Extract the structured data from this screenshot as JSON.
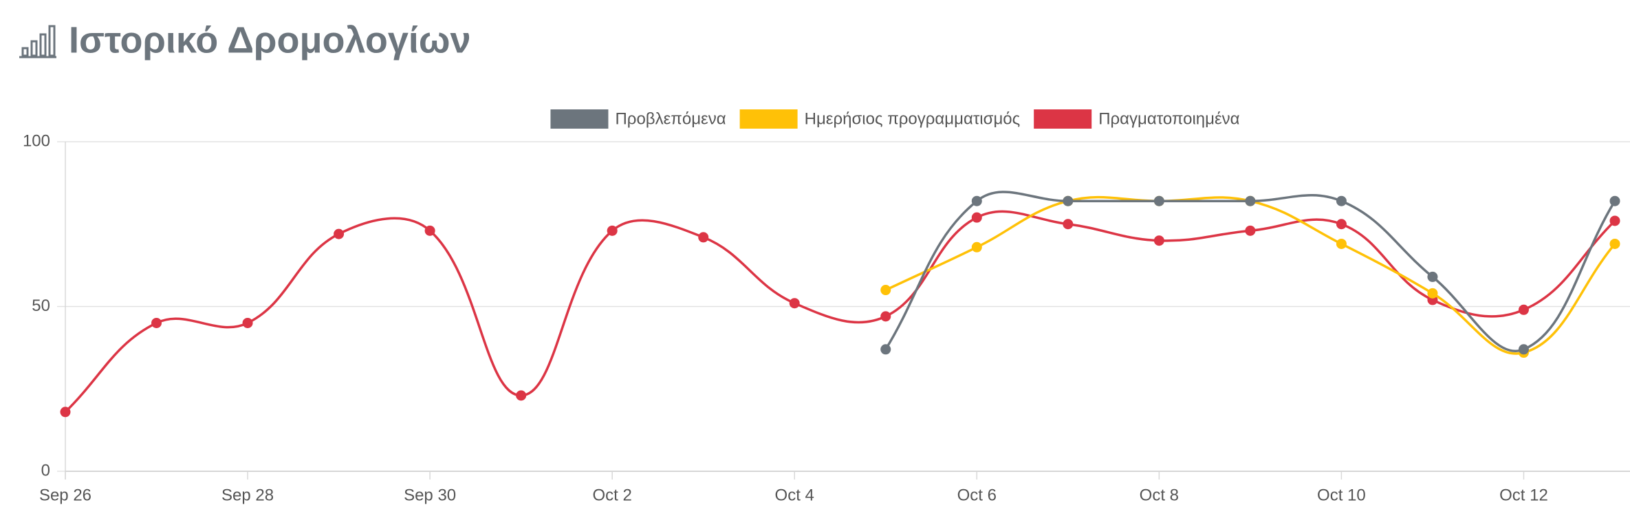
{
  "chart_data": {
    "type": "line",
    "title": "Ιστορικό Δρομολογίων",
    "categories": [
      "Sep 26",
      null,
      "Sep 28",
      null,
      "Sep 30",
      null,
      "Oct 2",
      null,
      "Oct 4",
      null,
      "Oct 6",
      null,
      "Oct 8",
      null,
      "Oct 10",
      null,
      "Oct 12",
      null
    ],
    "series": [
      {
        "name": "Προβλεπόμενα",
        "color": "#6c757d",
        "values": [
          null,
          null,
          null,
          null,
          null,
          null,
          null,
          null,
          null,
          37,
          82,
          82,
          82,
          82,
          82,
          59,
          37,
          82
        ]
      },
      {
        "name": "Ημερήσιος προγραμματισμός",
        "color": "#ffc107",
        "values": [
          null,
          null,
          null,
          null,
          null,
          null,
          null,
          null,
          null,
          55,
          68,
          82,
          82,
          82,
          69,
          54,
          36,
          69
        ]
      },
      {
        "name": "Πραγματοποιημένα",
        "color": "#dc3545",
        "values": [
          18,
          45,
          45,
          72,
          73,
          23,
          73,
          71,
          51,
          47,
          77,
          75,
          70,
          73,
          75,
          52,
          49,
          76
        ]
      }
    ],
    "ylim": [
      0,
      100
    ],
    "yticks": [
      0,
      50,
      100
    ],
    "grid": true,
    "legend": "top"
  }
}
